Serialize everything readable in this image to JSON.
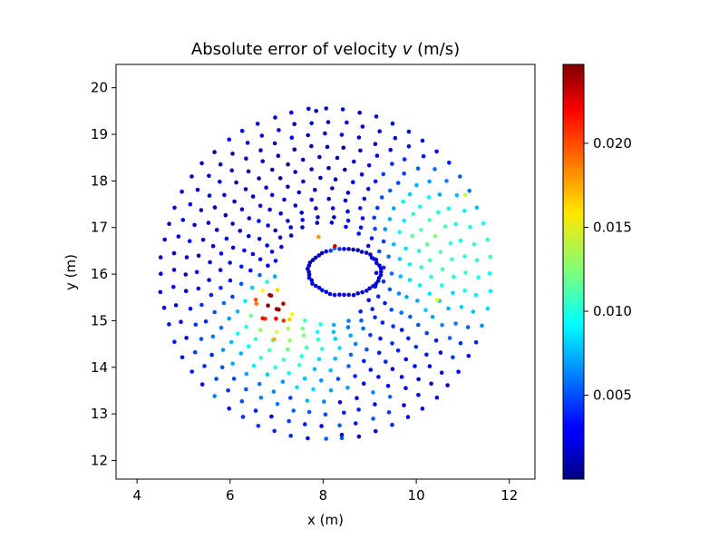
{
  "chart_data": {
    "type": "scatter",
    "title": "Absolute error of velocity v (m/s)",
    "title_parts": {
      "prefix": "Absolute error of velocity ",
      "var": "v",
      "suffix": " (m/s)"
    },
    "xlabel": "x (m)",
    "ylabel": "y (m)",
    "xlim": [
      3.55,
      12.55
    ],
    "ylim": [
      11.6,
      20.5
    ],
    "xticks": [
      4,
      6,
      8,
      10,
      12
    ],
    "yticks": [
      12,
      13,
      14,
      15,
      16,
      17,
      18,
      19,
      20
    ],
    "grid": false,
    "colormap": "jet",
    "colorbar": {
      "range": [
        0.0,
        0.0247
      ],
      "ticks": [
        0.005,
        0.01,
        0.015,
        0.02
      ],
      "tick_labels": [
        "0.005",
        "0.010",
        "0.015",
        "0.020"
      ]
    },
    "points": {
      "description_of_layout": "",
      "rings": [
        {
          "r": 3.55,
          "n": 60,
          "phase": 0.0
        },
        {
          "r": 3.27,
          "n": 56,
          "phase": 0.05
        },
        {
          "r": 3.0,
          "n": 52,
          "phase": 0.02
        },
        {
          "r": 2.75,
          "n": 48,
          "phase": 0.06
        },
        {
          "r": 2.5,
          "n": 44,
          "phase": 0.03
        },
        {
          "r": 2.27,
          "n": 40,
          "phase": 0.07
        },
        {
          "r": 2.05,
          "n": 36,
          "phase": 0.01
        },
        {
          "r": 1.83,
          "n": 32,
          "phase": 0.05
        },
        {
          "r": 1.62,
          "n": 28,
          "phase": 0.03
        },
        {
          "r": 1.42,
          "n": 26,
          "phase": 0.08
        },
        {
          "r": 1.25,
          "n": 24,
          "phase": 0.02
        },
        {
          "r": 1.1,
          "n": 22,
          "phase": 0.05
        }
      ],
      "center": [
        8.05,
        16.0
      ],
      "obstacle_center": [
        8.45,
        16.05
      ],
      "obstacle_half_size": 0.62,
      "sample_points": [
        {
          "x": 6.85,
          "y": 15.55,
          "err": 0.0245
        },
        {
          "x": 7.0,
          "y": 15.25,
          "err": 0.024
        },
        {
          "x": 6.7,
          "y": 15.05,
          "err": 0.0215
        },
        {
          "x": 7.15,
          "y": 15.0,
          "err": 0.0205
        },
        {
          "x": 6.55,
          "y": 15.45,
          "err": 0.0195
        },
        {
          "x": 8.25,
          "y": 16.6,
          "err": 0.0225
        },
        {
          "x": 7.9,
          "y": 16.8,
          "err": 0.018
        },
        {
          "x": 6.95,
          "y": 14.6,
          "err": 0.0175
        },
        {
          "x": 11.05,
          "y": 17.7,
          "err": 0.014
        },
        {
          "x": 10.45,
          "y": 15.45,
          "err": 0.015
        },
        {
          "x": 7.85,
          "y": 19.5,
          "err": 0.001
        },
        {
          "x": 8.4,
          "y": 12.55,
          "err": 0.002
        }
      ]
    }
  }
}
